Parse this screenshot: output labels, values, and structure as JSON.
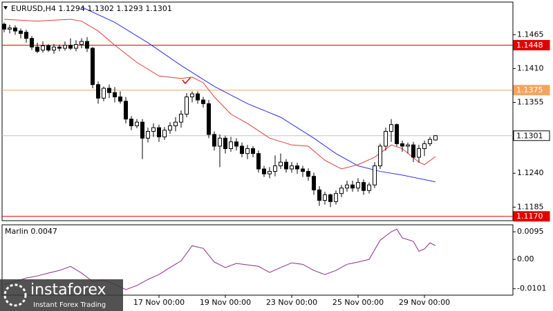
{
  "chart_data": [
    {
      "type": "candlestick",
      "title": "EURUSD,H4  1.1294 1.1302 1.1293 1.1301",
      "xlim": [
        -0.375,
        92
      ],
      "ylim": [
        1.1163,
        1.1518
      ],
      "yticks": [
        1.1465,
        {
          "value": 1.141,
          "label": "1.1410"
        },
        1.1355,
        {
          "value": 1.124,
          "label": "1.1240"
        },
        1.1185
      ],
      "open": [
        1.1482,
        1.1474,
        1.1476,
        1.1471,
        1.1469,
        1.1459,
        1.1445,
        1.144,
        1.1447,
        1.144,
        1.1445,
        1.1443,
        1.1448,
        1.1443,
        1.1449,
        1.1454,
        1.1443,
        1.1384,
        1.1362,
        1.1378,
        1.1371,
        1.1364,
        1.1357,
        1.1328,
        1.1317,
        1.1323,
        1.1297,
        1.1308,
        1.1314,
        1.1299,
        1.131,
        1.1317,
        1.1323,
        1.1336,
        1.1364,
        1.1369,
        1.1359,
        1.1353,
        1.1303,
        1.1284,
        1.1297,
        1.128,
        1.1291,
        1.1284,
        1.1272,
        1.128,
        1.1272,
        1.1247,
        1.1239,
        1.1243,
        1.1252,
        1.1258,
        1.1247,
        1.1252,
        1.1247,
        1.1243,
        1.1235,
        1.1213,
        1.1196,
        1.1205,
        1.1194,
        1.1207,
        1.1216,
        1.1221,
        1.1216,
        1.1225,
        1.1212,
        1.1221,
        1.1252,
        1.1284,
        1.1308,
        1.1319,
        1.1288,
        1.1284,
        1.1286,
        1.1266,
        1.128,
        1.1288,
        1.1294
      ],
      "high": [
        1.1485,
        1.1481,
        1.148,
        1.1475,
        1.1473,
        1.1463,
        1.1452,
        1.1454,
        1.145,
        1.145,
        1.1449,
        1.1454,
        1.1459,
        1.1456,
        1.1459,
        1.1461,
        1.1445,
        1.1389,
        1.1381,
        1.1384,
        1.138,
        1.1373,
        1.1364,
        1.1333,
        1.1328,
        1.1328,
        1.1314,
        1.1321,
        1.1319,
        1.1315,
        1.1323,
        1.1331,
        1.1342,
        1.137,
        1.1373,
        1.1373,
        1.1364,
        1.1359,
        1.1308,
        1.1303,
        1.1301,
        1.1299,
        1.1297,
        1.129,
        1.1286,
        1.1284,
        1.1277,
        1.1252,
        1.125,
        1.1269,
        1.1272,
        1.1263,
        1.1258,
        1.1257,
        1.1252,
        1.1248,
        1.1241,
        1.1219,
        1.121,
        1.1207,
        1.1212,
        1.1221,
        1.1228,
        1.1228,
        1.1232,
        1.123,
        1.1225,
        1.1258,
        1.1288,
        1.1314,
        1.1328,
        1.1321,
        1.1293,
        1.129,
        1.1291,
        1.1286,
        1.1293,
        1.1299,
        1.1302
      ],
      "low": [
        1.1469,
        1.1467,
        1.1465,
        1.1459,
        1.1452,
        1.144,
        1.1435,
        1.1436,
        1.1437,
        1.1434,
        1.1438,
        1.1439,
        1.144,
        1.1438,
        1.1443,
        1.1437,
        1.1378,
        1.1353,
        1.1357,
        1.1362,
        1.1355,
        1.1353,
        1.1321,
        1.131,
        1.1313,
        1.1263,
        1.129,
        1.1299,
        1.1291,
        1.1294,
        1.1304,
        1.1308,
        1.1314,
        1.1331,
        1.1355,
        1.1353,
        1.1347,
        1.1297,
        1.1277,
        1.125,
        1.1272,
        1.1275,
        1.1277,
        1.1266,
        1.1263,
        1.1266,
        1.1241,
        1.1234,
        1.1232,
        1.1235,
        1.1247,
        1.1241,
        1.1241,
        1.1239,
        1.1234,
        1.1228,
        1.1205,
        1.1187,
        1.1189,
        1.1185,
        1.1189,
        1.1201,
        1.121,
        1.121,
        1.121,
        1.1205,
        1.1207,
        1.1216,
        1.1247,
        1.1277,
        1.1291,
        1.1284,
        1.1275,
        1.1272,
        1.1258,
        1.1257,
        1.1268,
        1.1284,
        1.1293
      ],
      "close": [
        1.1474,
        1.1476,
        1.1471,
        1.1467,
        1.1459,
        1.1445,
        1.1438,
        1.1447,
        1.144,
        1.1445,
        1.1443,
        1.1448,
        1.1443,
        1.1449,
        1.1454,
        1.1443,
        1.1384,
        1.1362,
        1.1378,
        1.1371,
        1.1364,
        1.1357,
        1.1328,
        1.1317,
        1.1323,
        1.1297,
        1.1308,
        1.1314,
        1.1299,
        1.131,
        1.1317,
        1.1323,
        1.1336,
        1.1364,
        1.1369,
        1.1359,
        1.1353,
        1.1303,
        1.1284,
        1.1297,
        1.128,
        1.1291,
        1.1284,
        1.1272,
        1.128,
        1.1272,
        1.1247,
        1.1239,
        1.1243,
        1.1252,
        1.1258,
        1.1247,
        1.1252,
        1.1247,
        1.1243,
        1.1235,
        1.1213,
        1.1196,
        1.1205,
        1.1194,
        1.1207,
        1.1216,
        1.1221,
        1.1216,
        1.1225,
        1.1212,
        1.1221,
        1.1252,
        1.1284,
        1.1308,
        1.1319,
        1.1288,
        1.1284,
        1.1286,
        1.1266,
        1.128,
        1.1288,
        1.1295,
        1.1301
      ],
      "up_color": "#ffffff",
      "down_color": "#000000",
      "outline_color": "#000000",
      "series": [
        {
          "color": "#2a2aee",
          "x": [
            14,
            20,
            26,
            32,
            38,
            44,
            50,
            56,
            60,
            64,
            68,
            72,
            78
          ],
          "values": [
            1.151,
            1.1485,
            1.1452,
            1.1415,
            1.1381,
            1.1353,
            1.1331,
            1.1297,
            1.1272,
            1.1252,
            1.1243,
            1.1237,
            1.1226
          ]
        },
        {
          "color": "#e03a3a",
          "x": [
            0,
            6,
            12,
            14,
            17,
            20,
            24,
            28,
            32,
            34,
            36,
            38,
            41,
            44,
            48,
            52,
            55,
            58,
            61,
            64,
            67,
            70,
            72,
            75,
            76,
            78
          ],
          "values": [
            1.149,
            1.1487,
            1.149,
            1.1487,
            1.1471,
            1.1448,
            1.142,
            1.1398,
            1.1394,
            1.1396,
            1.1387,
            1.1364,
            1.1336,
            1.1321,
            1.1297,
            1.1286,
            1.1284,
            1.1261,
            1.1247,
            1.1254,
            1.1266,
            1.1286,
            1.128,
            1.1258,
            1.1254,
            1.1267
          ]
        }
      ],
      "levels": [
        {
          "value": 1.1448,
          "label": "1.1448",
          "color": "#e00000",
          "label_fill": "#e00000",
          "label_text": "#ffffff"
        },
        {
          "value": 1.1375,
          "label": "1.1375",
          "color": "#f4a460",
          "label_fill": "#f4a460",
          "label_text": "#ffffff"
        },
        {
          "value": 1.1301,
          "label": "1.1301",
          "color": "#c0c0c0",
          "label_fill": "#ffffff",
          "label_text": "#000000"
        },
        {
          "value": 1.117,
          "label": "1.1170",
          "color": "#e00000",
          "label_fill": "#e00000",
          "label_text": "#ffffff"
        }
      ]
    },
    {
      "type": "line",
      "title": "Marlin 0.0047",
      "xlim": [
        -0.375,
        92
      ],
      "ylim": [
        -0.0123,
        0.0119
      ],
      "yticks": [
        0.0095,
        {
          "value": 0,
          "label": "0.00"
        },
        -0.0101
      ],
      "xticks": [
        {
          "value": 28,
          "label": "17 Nov 00:00"
        },
        {
          "value": 40,
          "label": "19 Nov 00:00"
        },
        {
          "value": 52,
          "label": "23 Nov 00:00"
        },
        {
          "value": 64,
          "label": "25 Nov 00:00"
        },
        {
          "value": 76,
          "label": "29 Nov 00:00"
        }
      ],
      "color": "#8b2a8b",
      "x": [
        0,
        2,
        4,
        6,
        8,
        10,
        12,
        14,
        16,
        18,
        20,
        22,
        24,
        26,
        28,
        30,
        32,
        34,
        36,
        38,
        40,
        42,
        44,
        46,
        48,
        50,
        52,
        54,
        56,
        58,
        60,
        62,
        64,
        66,
        68,
        70,
        71,
        72,
        74,
        75,
        76,
        77,
        78
      ],
      "values": [
        -0.0086,
        -0.0076,
        -0.0064,
        -0.0057,
        -0.0047,
        -0.0038,
        -0.0024,
        -0.0047,
        -0.0076,
        -0.0071,
        -0.0086,
        -0.0104,
        -0.009,
        -0.0069,
        -0.0052,
        -0.0028,
        -0.0005,
        0.0047,
        0.0038,
        -0.0009,
        -0.0028,
        -0.0014,
        -0.0019,
        -0.0024,
        -0.0045,
        -0.0028,
        -0.0012,
        -0.0017,
        -0.0038,
        -0.0052,
        -0.0038,
        -0.0017,
        -0.0009,
        0.0,
        0.0066,
        0.0095,
        0.0104,
        0.0074,
        0.0062,
        0.0028,
        0.0036,
        0.0057,
        0.0047
      ]
    }
  ],
  "watermark": {
    "brand": "instaforex",
    "tagline": "Instant Forex Trading"
  }
}
